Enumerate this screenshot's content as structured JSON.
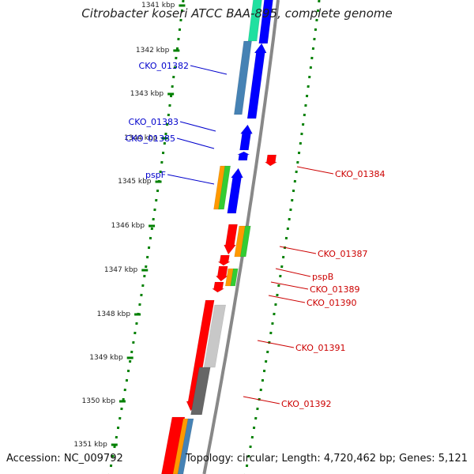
{
  "title": "Citrobacter koseri ATCC BAA-895, complete genome",
  "accession": "Accession: NC_009792",
  "summary": "Topology: circular; Length: 4,720,462 bp; Genes: 5,121",
  "colors": {
    "forward_gene": "#0000ff",
    "reverse_gene": "#ff0000",
    "forward_label": "#0000cc",
    "reverse_label": "#cc0000",
    "tick": "#008000",
    "backbone": "#888888",
    "teal": "#20e0a0",
    "orange": "#ff9900",
    "green": "#33cc33",
    "steelblue": "#4682b4",
    "lightgray": "#c8c8c8",
    "darkgray": "#666666"
  },
  "scale": [
    {
      "label": "1341 kbp"
    },
    {
      "label": "1342 kbp"
    },
    {
      "label": "1343 kbp"
    },
    {
      "label": "1344 kbp"
    },
    {
      "label": "1345 kbp"
    },
    {
      "label": "1346 kbp"
    },
    {
      "label": "1347 kbp"
    },
    {
      "label": "1348 kbp"
    },
    {
      "label": "1349 kbp"
    },
    {
      "label": "1350 kbp"
    },
    {
      "label": "1351 kbp"
    }
  ],
  "forward_labels": [
    "CKO_01382",
    "CKO_01383",
    "CKO_01385",
    "pspF"
  ],
  "reverse_labels": [
    "CKO_01384",
    "CKO_01387",
    "pspB",
    "CKO_01389",
    "CKO_01390",
    "CKO_01391",
    "CKO_01392"
  ]
}
